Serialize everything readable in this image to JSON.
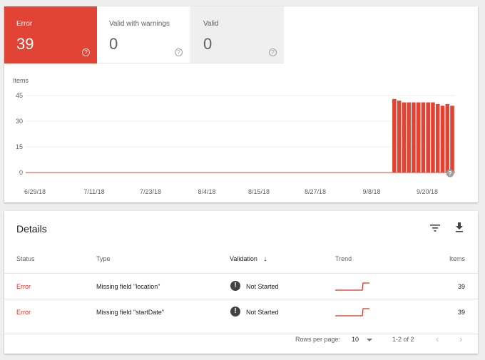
{
  "tiles": {
    "error": {
      "label": "Error",
      "value": "39",
      "help": "?"
    },
    "warnings": {
      "label": "Valid with warnings",
      "value": "0",
      "help": "?"
    },
    "valid": {
      "label": "Valid",
      "value": "0",
      "help": "?"
    }
  },
  "colors": {
    "error": "#e14334",
    "bar": "#e14334",
    "trend": "#d93025"
  },
  "chart_data": {
    "type": "bar",
    "ylabel": "Items",
    "yticks": [
      0,
      15,
      30,
      45
    ],
    "ylim": [
      0,
      45
    ],
    "xtick_labels": [
      "6/29/18",
      "7/11/18",
      "7/23/18",
      "8/4/18",
      "8/15/18",
      "8/27/18",
      "9/8/18",
      "9/20/18"
    ],
    "date_start": "2018-06-29",
    "date_end": "2018-09-26",
    "bars": [
      {
        "date": "2018-09-13",
        "value": 43
      },
      {
        "date": "2018-09-14",
        "value": 42
      },
      {
        "date": "2018-09-15",
        "value": 41
      },
      {
        "date": "2018-09-16",
        "value": 41
      },
      {
        "date": "2018-09-17",
        "value": 41
      },
      {
        "date": "2018-09-18",
        "value": 41
      },
      {
        "date": "2018-09-19",
        "value": 41
      },
      {
        "date": "2018-09-20",
        "value": 41
      },
      {
        "date": "2018-09-21",
        "value": 41
      },
      {
        "date": "2018-09-22",
        "value": 40
      },
      {
        "date": "2018-09-23",
        "value": 39
      },
      {
        "date": "2018-09-24",
        "value": 40
      },
      {
        "date": "2018-09-25",
        "value": 39
      }
    ],
    "help": "?"
  },
  "details": {
    "title": "Details",
    "columns": {
      "status": "Status",
      "type": "Type",
      "validation": "Validation",
      "validation_sort": "↓",
      "trend": "Trend",
      "items": "Items"
    },
    "rows": [
      {
        "status": "Error",
        "type": "Missing field \"location\"",
        "validation_icon": "!",
        "validation": "Not Started",
        "items": "39"
      },
      {
        "status": "Error",
        "type": "Missing field \"startDate\"",
        "validation_icon": "!",
        "validation": "Not Started",
        "items": "39"
      }
    ],
    "pager": {
      "label": "Rows per page:",
      "size": "10",
      "range": "1-2 of 2",
      "prev": "‹",
      "next": "›"
    }
  }
}
